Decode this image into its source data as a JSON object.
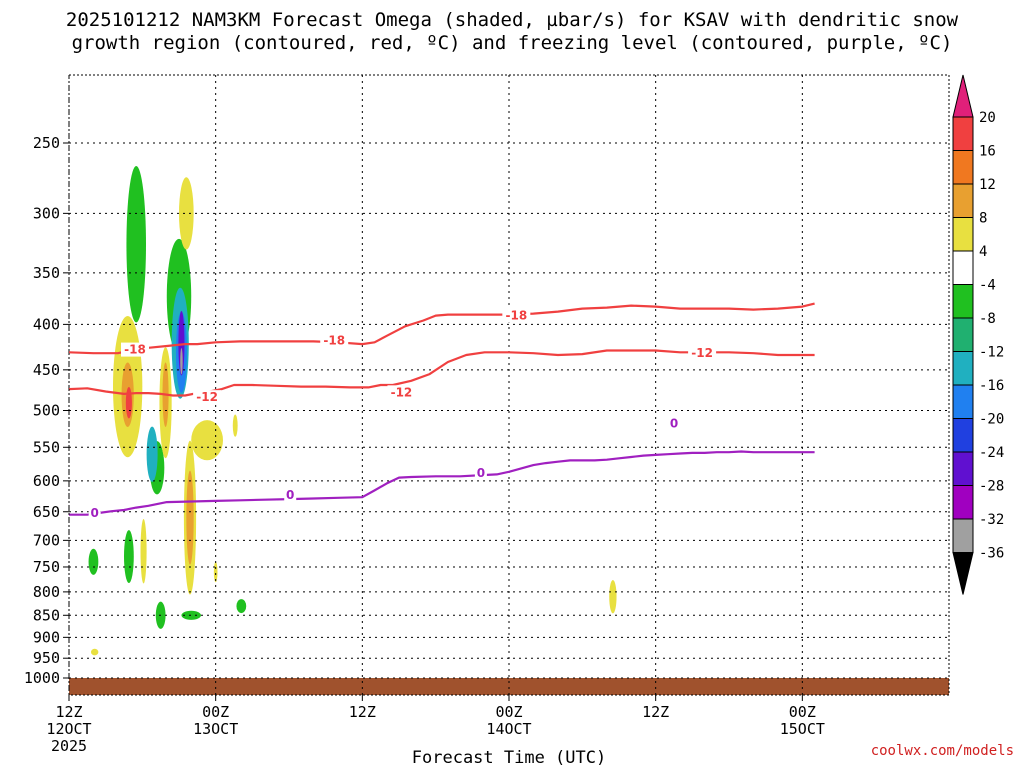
{
  "chart_data": {
    "type": "contour",
    "title_line1": "2025101212 NAM3KM Forecast Omega (shaded, µbar/s) for KSAV with dendritic snow",
    "title_line2": "growth region (contoured, red, ºC) and freezing level (contoured, purple, ºC)",
    "xlabel": "Forecast Time (UTC)",
    "credit": "coolwx.com/models",
    "yscale": "log",
    "ylim": [
      1000,
      200
    ],
    "xlim": [
      0,
      72
    ],
    "y_ticks": [
      250,
      300,
      350,
      400,
      450,
      500,
      550,
      600,
      650,
      700,
      750,
      800,
      850,
      900,
      950,
      1000
    ],
    "x_ticks": [
      {
        "hour": 0,
        "line1": "12Z",
        "line2": "12OCT",
        "line3": "2025"
      },
      {
        "hour": 12,
        "line1": "00Z",
        "line2": "13OCT",
        "line3": ""
      },
      {
        "hour": 24,
        "line1": "12Z",
        "line2": "",
        "line3": ""
      },
      {
        "hour": 36,
        "line1": "00Z",
        "line2": "14OCT",
        "line3": ""
      },
      {
        "hour": 48,
        "line1": "12Z",
        "line2": "",
        "line3": ""
      },
      {
        "hour": 60,
        "line1": "00Z",
        "line2": "15OCT",
        "line3": ""
      }
    ],
    "colorbar": {
      "labels": [
        20,
        16,
        12,
        8,
        4,
        -4,
        -8,
        -12,
        -16,
        -20,
        -24,
        -28,
        -32,
        -36
      ],
      "colors": [
        "#e0207a",
        "#f04040",
        "#f07820",
        "#e8a030",
        "#e8e040",
        "#ffffff",
        "#20c020",
        "#20b070",
        "#20b0c0",
        "#2080f0",
        "#2040e0",
        "#6010d0",
        "#a000c0",
        "#a0a0a0",
        "#000000"
      ]
    },
    "terrain_color": "#a0522d",
    "contours": [
      {
        "label": "-18",
        "color": "#f04040",
        "label_positions": [
          [
            5.4,
            427
          ],
          [
            21.7,
            417
          ],
          [
            36.6,
            391
          ]
        ],
        "points": [
          [
            0,
            430
          ],
          [
            2,
            431
          ],
          [
            4,
            431
          ],
          [
            5,
            428
          ],
          [
            6.5,
            425
          ],
          [
            8,
            423
          ],
          [
            9.5,
            421
          ],
          [
            10.5,
            421
          ],
          [
            12,
            419
          ],
          [
            14,
            418
          ],
          [
            16,
            418
          ],
          [
            18,
            418
          ],
          [
            20,
            418
          ],
          [
            22,
            419
          ],
          [
            24,
            421
          ],
          [
            25,
            419
          ],
          [
            26,
            412
          ],
          [
            27.5,
            402
          ],
          [
            29,
            396
          ],
          [
            30,
            391
          ],
          [
            31,
            390
          ],
          [
            32,
            390
          ],
          [
            34,
            390
          ],
          [
            36,
            390
          ],
          [
            38,
            389
          ],
          [
            40,
            387
          ],
          [
            42,
            384
          ],
          [
            44,
            383
          ],
          [
            46,
            381
          ],
          [
            48,
            382
          ],
          [
            50,
            384
          ],
          [
            51,
            384
          ],
          [
            52,
            384
          ],
          [
            54,
            384
          ],
          [
            56,
            385
          ],
          [
            58,
            384
          ],
          [
            60,
            382
          ],
          [
            61,
            379
          ]
        ]
      },
      {
        "label": "-12",
        "color": "#f04040",
        "label_positions": [
          [
            11.3,
            483
          ],
          [
            27.2,
            477
          ],
          [
            51.8,
            431
          ]
        ],
        "points": [
          [
            0,
            473
          ],
          [
            1.5,
            472
          ],
          [
            3,
            476
          ],
          [
            4.5,
            479
          ],
          [
            5.5,
            478
          ],
          [
            6.5,
            478
          ],
          [
            7.5,
            479
          ],
          [
            8.5,
            481
          ],
          [
            9.5,
            481
          ],
          [
            10.5,
            478
          ],
          [
            11.5,
            476
          ],
          [
            12.5,
            473
          ],
          [
            13.5,
            468
          ],
          [
            15,
            468
          ],
          [
            17,
            469
          ],
          [
            19,
            470
          ],
          [
            21,
            470
          ],
          [
            23,
            471
          ],
          [
            24.5,
            471
          ],
          [
            25.5,
            468
          ],
          [
            26.5,
            468
          ],
          [
            28,
            463
          ],
          [
            29.5,
            455
          ],
          [
            31,
            441
          ],
          [
            32.5,
            433
          ],
          [
            34,
            430
          ],
          [
            36,
            430
          ],
          [
            38,
            431
          ],
          [
            40,
            433
          ],
          [
            42,
            432
          ],
          [
            44,
            428
          ],
          [
            46,
            428
          ],
          [
            48,
            428
          ],
          [
            50,
            430
          ],
          [
            52,
            430
          ],
          [
            54,
            430
          ],
          [
            56,
            431
          ],
          [
            58,
            433
          ],
          [
            60,
            433
          ],
          [
            61,
            433
          ]
        ]
      },
      {
        "label": "0",
        "color": "#a020c0",
        "label_positions": [
          [
            2.1,
            652
          ],
          [
            18.1,
            622
          ],
          [
            33.7,
            588
          ],
          [
            49.5,
            517
          ]
        ],
        "points": [
          [
            0,
            655
          ],
          [
            1.5,
            655
          ],
          [
            2.5,
            652
          ],
          [
            3.5,
            649
          ],
          [
            4.5,
            647
          ],
          [
            5.5,
            643
          ],
          [
            6.5,
            640
          ],
          [
            8,
            634
          ],
          [
            10,
            633
          ],
          [
            12,
            632
          ],
          [
            14,
            631
          ],
          [
            16,
            630
          ],
          [
            18,
            629
          ],
          [
            20,
            628
          ],
          [
            22,
            627
          ],
          [
            24,
            626
          ],
          [
            25,
            615
          ],
          [
            26,
            604
          ],
          [
            27,
            595
          ],
          [
            28,
            594
          ],
          [
            30,
            593
          ],
          [
            32,
            593
          ],
          [
            34,
            591
          ],
          [
            35,
            590
          ],
          [
            36,
            586
          ],
          [
            37,
            581
          ],
          [
            38,
            576
          ],
          [
            39,
            573
          ],
          [
            40,
            571
          ],
          [
            41,
            569
          ],
          [
            42,
            569
          ],
          [
            43,
            569
          ],
          [
            44,
            568
          ],
          [
            45,
            566
          ],
          [
            46,
            564
          ],
          [
            47,
            562
          ],
          [
            48,
            561
          ],
          [
            49,
            560
          ],
          [
            50,
            559
          ],
          [
            51,
            558
          ],
          [
            52,
            558
          ],
          [
            53,
            557
          ],
          [
            54,
            557
          ],
          [
            55,
            556
          ],
          [
            56,
            557
          ],
          [
            57,
            557
          ],
          [
            58,
            557
          ],
          [
            59,
            557
          ],
          [
            60,
            557
          ],
          [
            61,
            557
          ]
        ]
      }
    ],
    "omega_features": [
      {
        "color": "#20c020",
        "hour": 5.5,
        "p": 325,
        "rx": 0.8,
        "ry": 65
      },
      {
        "color": "#20c020",
        "hour": 9.0,
        "p": 372,
        "rx": 1.0,
        "ry": 55
      },
      {
        "color": "#20c020",
        "hour": 7.2,
        "p": 580,
        "rx": 0.6,
        "ry": 40
      },
      {
        "color": "#20c020",
        "hour": 4.9,
        "p": 730,
        "rx": 0.4,
        "ry": 50
      },
      {
        "color": "#20c020",
        "hour": 2.0,
        "p": 740,
        "rx": 0.4,
        "ry": 25
      },
      {
        "color": "#20c020",
        "hour": 7.5,
        "p": 850,
        "rx": 0.4,
        "ry": 30
      },
      {
        "color": "#20c020",
        "hour": 10.0,
        "p": 850,
        "rx": 0.8,
        "ry": 10
      },
      {
        "color": "#20c020",
        "hour": 14.1,
        "p": 830,
        "rx": 0.4,
        "ry": 15
      },
      {
        "color": "#20b0c0",
        "hour": 9.1,
        "p": 420,
        "rx": 0.7,
        "ry": 60
      },
      {
        "color": "#20b0c0",
        "hour": 6.8,
        "p": 560,
        "rx": 0.45,
        "ry": 40
      },
      {
        "color": "#2080f0",
        "hour": 9.2,
        "p": 430,
        "rx": 0.45,
        "ry": 45
      },
      {
        "color": "#6010d0",
        "hour": 9.2,
        "p": 420,
        "rx": 0.25,
        "ry": 35
      },
      {
        "color": "#a0a0a0",
        "hour": 9.2,
        "p": 440,
        "rx": 0.1,
        "ry": 15
      },
      {
        "color": "#e8e040",
        "hour": 9.6,
        "p": 300,
        "rx": 0.6,
        "ry": 28
      },
      {
        "color": "#e8e040",
        "hour": 4.8,
        "p": 470,
        "rx": 1.2,
        "ry": 85
      },
      {
        "color": "#e8e040",
        "hour": 7.9,
        "p": 490,
        "rx": 0.5,
        "ry": 70
      },
      {
        "color": "#e8e040",
        "hour": 11.3,
        "p": 540,
        "rx": 1.3,
        "ry": 28
      },
      {
        "color": "#e8e040",
        "hour": 9.9,
        "p": 660,
        "rx": 0.5,
        "ry": 130
      },
      {
        "color": "#e8e040",
        "hour": 6.1,
        "p": 720,
        "rx": 0.25,
        "ry": 60
      },
      {
        "color": "#e8e040",
        "hour": 13.6,
        "p": 520,
        "rx": 0.2,
        "ry": 15
      },
      {
        "color": "#e8e040",
        "hour": 12.0,
        "p": 760,
        "rx": 0.15,
        "ry": 20
      },
      {
        "color": "#e8e040",
        "hour": 2.1,
        "p": 935,
        "rx": 0.3,
        "ry": 8
      },
      {
        "color": "#e8e040",
        "hour": 44.5,
        "p": 810,
        "rx": 0.3,
        "ry": 35
      },
      {
        "color": "#e8a030",
        "hour": 4.8,
        "p": 480,
        "rx": 0.5,
        "ry": 40
      },
      {
        "color": "#e8a030",
        "hour": 9.9,
        "p": 660,
        "rx": 0.3,
        "ry": 80
      },
      {
        "color": "#e8a030",
        "hour": 7.9,
        "p": 480,
        "rx": 0.25,
        "ry": 40
      },
      {
        "color": "#f04040",
        "hour": 4.9,
        "p": 490,
        "rx": 0.25,
        "ry": 20
      }
    ]
  }
}
